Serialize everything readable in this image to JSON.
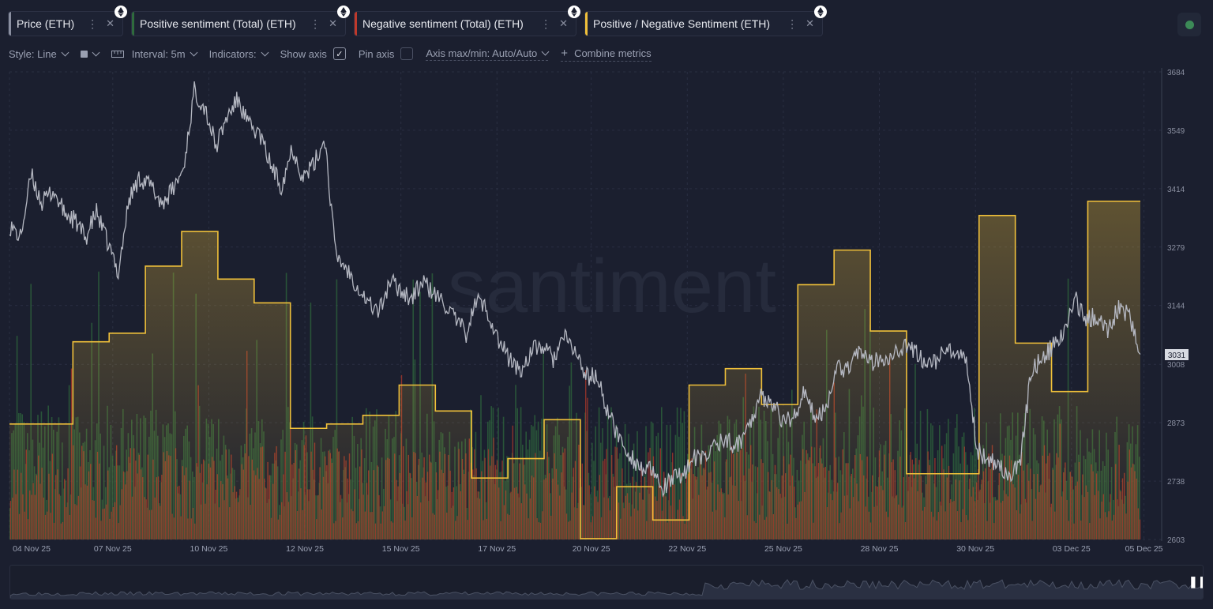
{
  "tabs": [
    {
      "label": "Price (ETH)",
      "color": "#8a8fa0"
    },
    {
      "label": "Positive sentiment (Total) (ETH)",
      "color": "#2f6b3d"
    },
    {
      "label": "Negative sentiment (Total) (ETH)",
      "color": "#c0392b"
    },
    {
      "label": "Positive / Negative Sentiment (ETH)",
      "color": "#f0c03a"
    }
  ],
  "toolbar": {
    "style": "Style: Line",
    "interval": "Interval: 5m",
    "indicators": "Indicators:",
    "show_axis": "Show axis",
    "pin_axis": "Pin axis",
    "axis_minmax": "Axis max/min: Auto/Auto",
    "combine": "Combine metrics"
  },
  "watermark": "santiment",
  "chart_data": {
    "type": "line",
    "x_ticks": [
      "04 Nov 25",
      "07 Nov 25",
      "10 Nov 25",
      "12 Nov 25",
      "15 Nov 25",
      "17 Nov 25",
      "20 Nov 25",
      "22 Nov 25",
      "25 Nov 25",
      "28 Nov 25",
      "30 Nov 25",
      "03 Dec 25",
      "05 Dec 25"
    ],
    "y_ticks": [
      3684,
      3549,
      3414,
      3279,
      3144,
      3008,
      2873,
      2738,
      2603
    ],
    "ylim": [
      2603,
      3684
    ],
    "current_value": "3031",
    "grid": true,
    "series": [
      {
        "name": "Price (ETH)",
        "color": "#b5b8c2",
        "x_day": [
          0,
          0.3,
          0.6,
          0.9,
          1.2,
          1.5,
          1.8,
          2.1,
          2.4,
          2.7,
          3.0,
          3.3,
          3.6,
          3.9,
          4.2,
          4.5,
          4.8,
          5.1,
          5.4,
          5.7,
          6.0,
          6.3,
          6.6,
          6.9,
          7.2,
          7.5,
          7.8,
          8.1,
          8.4,
          8.7,
          9.0,
          9.3,
          9.6,
          9.9,
          10.2,
          10.5,
          10.8,
          11.1,
          11.4,
          11.7,
          12.0,
          12.3,
          12.6,
          12.9,
          13.2,
          13.5,
          13.8,
          14.1,
          14.4,
          14.7,
          15.0,
          15.3,
          15.6,
          15.9,
          16.2,
          16.5,
          16.8,
          17.1,
          17.4,
          17.7,
          18.0,
          18.3,
          18.6,
          18.9,
          19.2,
          19.5,
          19.8,
          20.1,
          20.4,
          20.7,
          21.0,
          21.3,
          21.6,
          21.9,
          22.2,
          22.5,
          22.8,
          23.1,
          23.4,
          23.7,
          24.0,
          24.3,
          24.6,
          24.9,
          25.2,
          25.5,
          25.8,
          26.1,
          26.4,
          26.7,
          27.0,
          27.3,
          27.6,
          27.9,
          28.2,
          28.5,
          28.8,
          29.1,
          29.4,
          29.7,
          30.0,
          30.3,
          30.6,
          30.9,
          31.2
        ],
        "values": [
          3330,
          3300,
          3445,
          3380,
          3410,
          3360,
          3340,
          3300,
          3360,
          3290,
          3220,
          3390,
          3440,
          3420,
          3380,
          3410,
          3460,
          3640,
          3600,
          3510,
          3580,
          3620,
          3560,
          3540,
          3470,
          3420,
          3510,
          3440,
          3470,
          3530,
          3260,
          3230,
          3190,
          3150,
          3130,
          3200,
          3180,
          3160,
          3200,
          3170,
          3150,
          3110,
          3080,
          3160,
          3130,
          3060,
          3020,
          2990,
          3040,
          3050,
          3020,
          3070,
          3040,
          2980,
          2980,
          2900,
          2840,
          2800,
          2770,
          2760,
          2720,
          2740,
          2760,
          2790,
          2790,
          2830,
          2830,
          2820,
          2870,
          2930,
          2930,
          2880,
          2880,
          2940,
          2890,
          2900,
          3000,
          3000,
          3040,
          3010,
          3020,
          3030,
          3050,
          3040,
          3020,
          3010,
          3040,
          3030,
          3010,
          2810,
          2790,
          2780,
          2740,
          2790,
          3000,
          3020,
          3050,
          3080,
          3160,
          3110,
          3120,
          3090,
          3140,
          3120,
          3031
        ]
      },
      {
        "name": "Positive / Negative Sentiment (ETH)",
        "color": "#f0c03a",
        "step_x_day": [
          0,
          1.75,
          2.75,
          3.75,
          4.75,
          5.75,
          6.75,
          7.75,
          8.75,
          9.75,
          10.75,
          11.75,
          12.75,
          13.75,
          14.75,
          15.75,
          16.75,
          17.75,
          18.75,
          19.75,
          20.75,
          21.75,
          22.75,
          23.75,
          24.75,
          25.75,
          26.75,
          27.75,
          28.75,
          29.75,
          30.75
        ],
        "values": [
          2870,
          3060,
          3080,
          3235,
          3315,
          3205,
          3150,
          2860,
          2870,
          2890,
          2960,
          2900,
          2745,
          2790,
          2880,
          2605,
          2725,
          2648,
          2960,
          2998,
          2915,
          3192,
          3272,
          3085,
          2755,
          2755,
          3352,
          3057,
          2945,
          3385,
          3385
        ]
      }
    ],
    "bars": [
      {
        "name": "Positive sentiment (Total) (ETH)",
        "color": "#2f6b3d"
      },
      {
        "name": "Negative sentiment (Total) (ETH)",
        "color": "#c0392b"
      }
    ]
  }
}
